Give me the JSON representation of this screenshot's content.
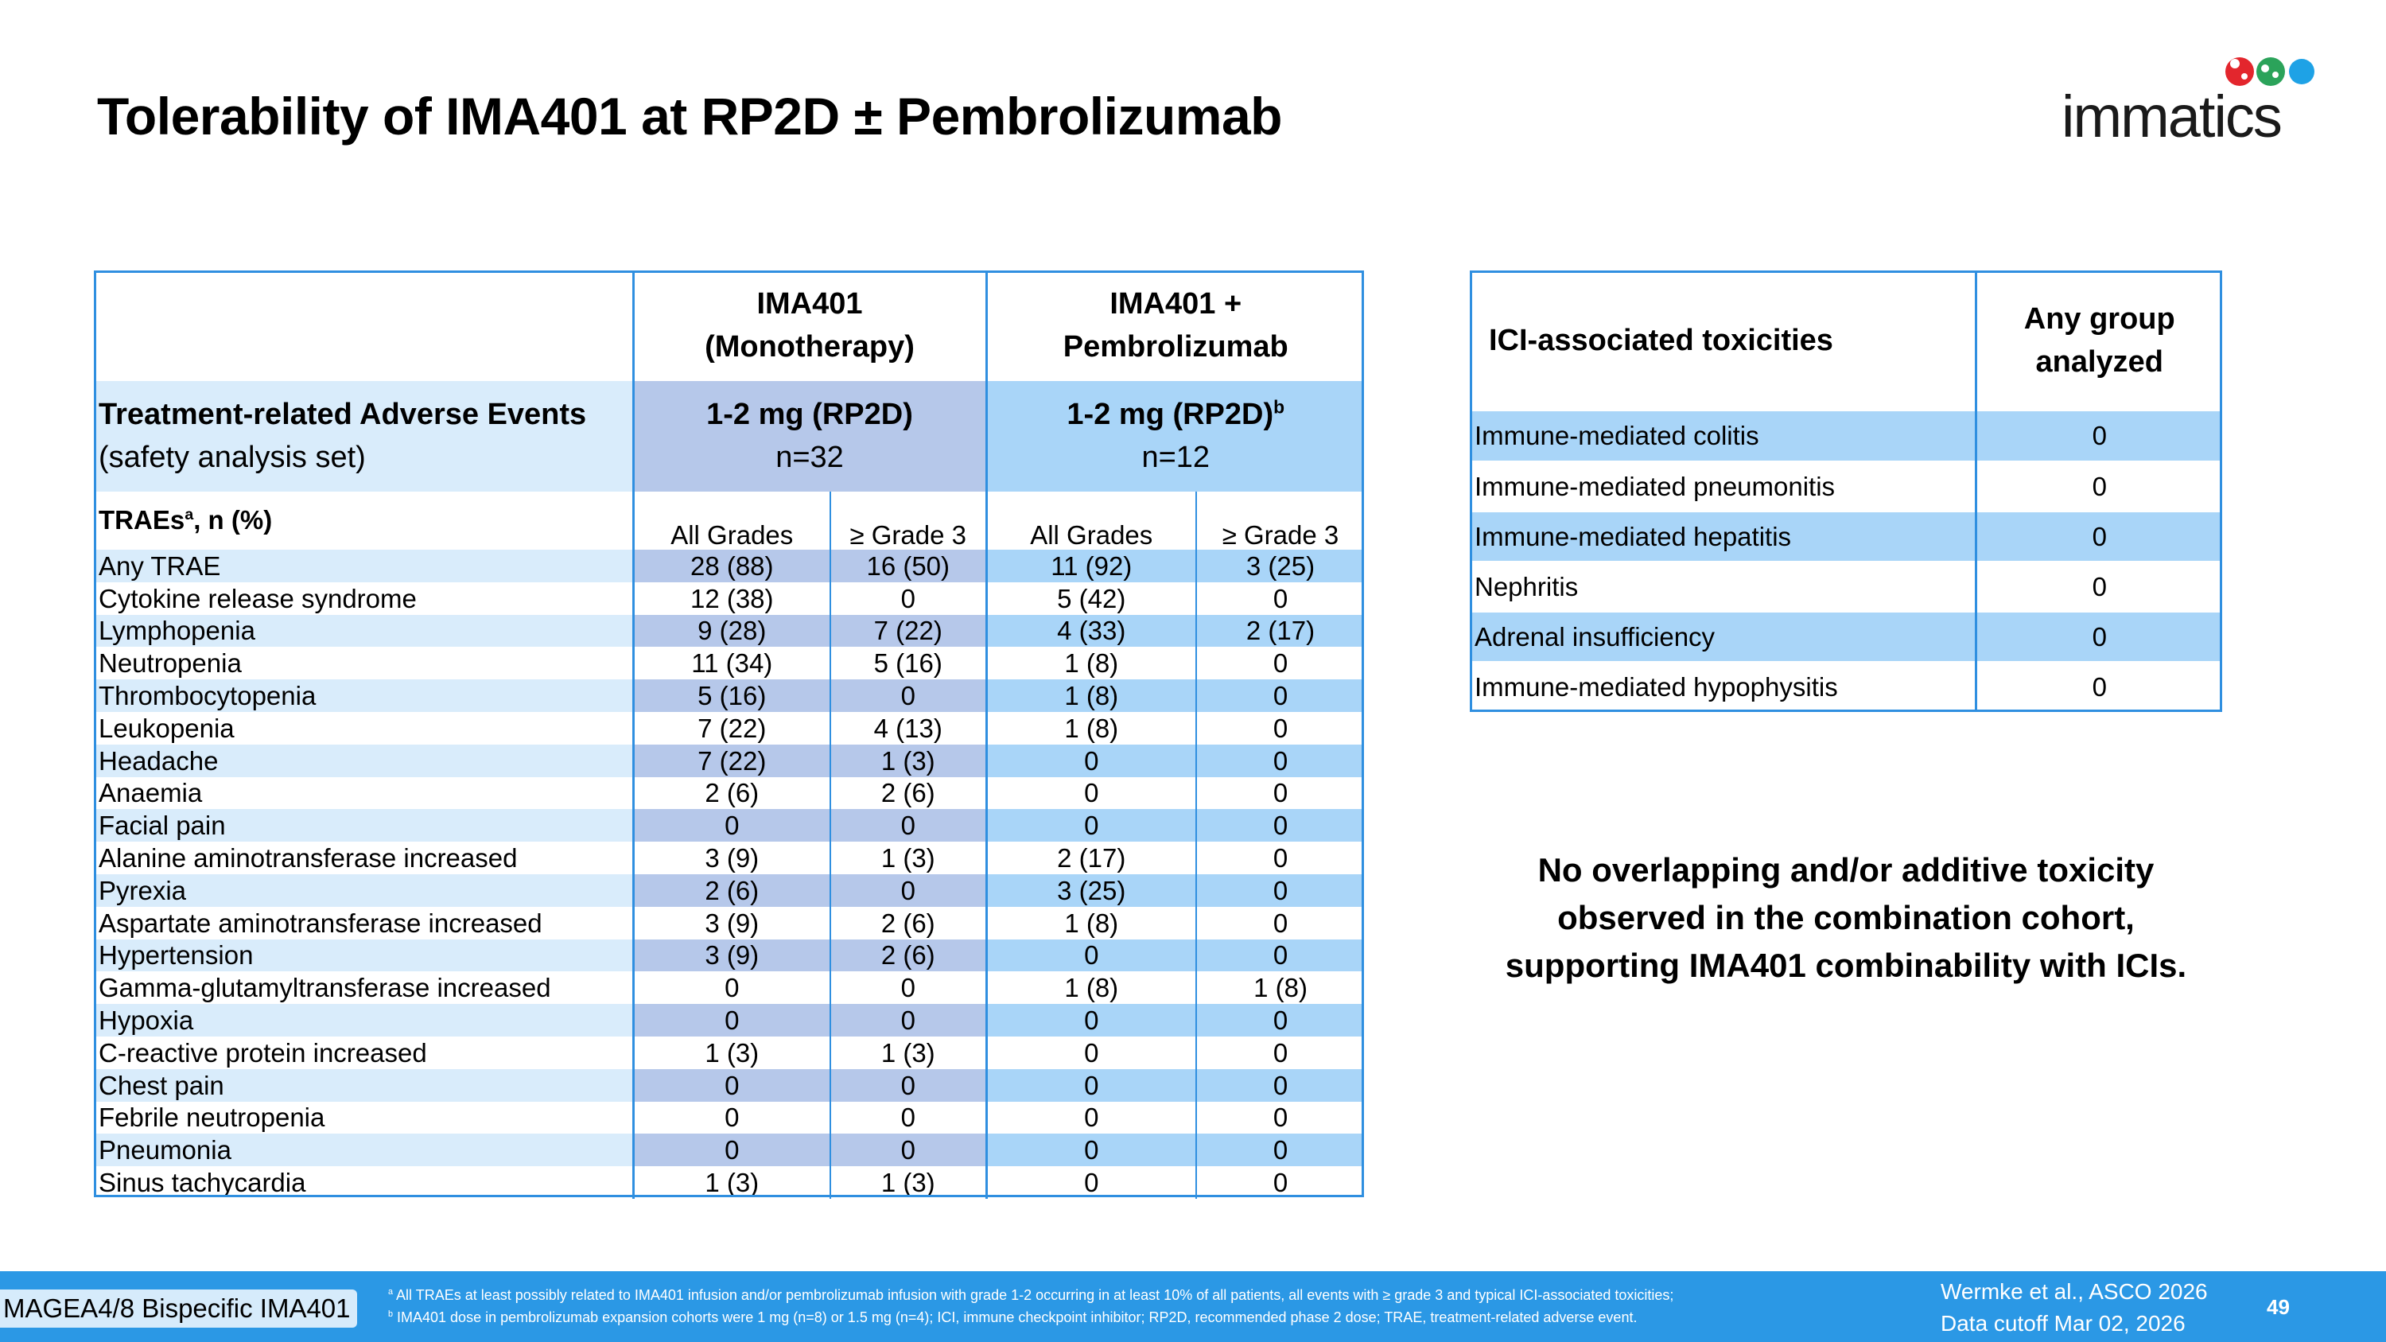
{
  "title": "Tolerability of IMA401 at RP2D ± Pembrolizumab",
  "logo": {
    "text": "immatics",
    "dot_colors": [
      "#e3262d",
      "#2ba35a",
      "#1ea2e6"
    ]
  },
  "trae_table": {
    "header": {
      "mono": "IMA401",
      "mono_sub": "(Monotherapy)",
      "combo": "IMA401 +",
      "combo_sub": "Pembrolizumab"
    },
    "subheader": {
      "label": "Treatment-related Adverse Events",
      "label_sub": "(safety analysis set)",
      "mono_dose": "1-2 mg (RP2D)",
      "mono_n": "n=32",
      "combo_dose": "1-2 mg (RP2D)",
      "combo_dose_sup": "b",
      "combo_n": "n=12"
    },
    "colheader": {
      "label": "TRAEs",
      "label_sup": "a",
      "label_rest": ", n (%)",
      "all_grades": "All Grades",
      "grade3": "≥ Grade 3"
    },
    "rows": [
      [
        "Any TRAE",
        "28 (88)",
        "16 (50)",
        "11 (92)",
        "3 (25)"
      ],
      [
        "Cytokine release syndrome",
        "12 (38)",
        "0",
        "5 (42)",
        "0"
      ],
      [
        "Lymphopenia",
        "9 (28)",
        "7 (22)",
        "4 (33)",
        "2 (17)"
      ],
      [
        "Neutropenia",
        "11 (34)",
        "5 (16)",
        "1 (8)",
        "0"
      ],
      [
        "Thrombocytopenia",
        "5 (16)",
        "0",
        "1 (8)",
        "0"
      ],
      [
        "Leukopenia",
        "7 (22)",
        "4 (13)",
        "1 (8)",
        "0"
      ],
      [
        "Headache",
        "7 (22)",
        "1 (3)",
        "0",
        "0"
      ],
      [
        "Anaemia",
        "2 (6)",
        "2 (6)",
        "0",
        "0"
      ],
      [
        "Facial pain",
        "0",
        "0",
        "0",
        "0"
      ],
      [
        "Alanine aminotransferase increased",
        "3 (9)",
        "1 (3)",
        "2 (17)",
        "0"
      ],
      [
        "Pyrexia",
        "2 (6)",
        "0",
        "3 (25)",
        "0"
      ],
      [
        "Aspartate aminotransferase increased",
        "3 (9)",
        "2 (6)",
        "1 (8)",
        "0"
      ],
      [
        "Hypertension",
        "3 (9)",
        "2 (6)",
        "0",
        "0"
      ],
      [
        "Gamma-glutamyltransferase increased",
        "0",
        "0",
        "1 (8)",
        "1 (8)"
      ],
      [
        "Hypoxia",
        "0",
        "0",
        "0",
        "0"
      ],
      [
        "C-reactive protein increased",
        "1 (3)",
        "1 (3)",
        "0",
        "0"
      ],
      [
        "Chest pain",
        "0",
        "0",
        "0",
        "0"
      ],
      [
        "Febrile neutropenia",
        "0",
        "0",
        "0",
        "0"
      ],
      [
        "Pneumonia",
        "0",
        "0",
        "0",
        "0"
      ],
      [
        "Sinus tachycardia",
        "1 (3)",
        "1 (3)",
        "0",
        "0"
      ]
    ]
  },
  "ici_table": {
    "header_label": "ICI-associated toxicities",
    "header_value_1": "Any group",
    "header_value_2": "analyzed",
    "rows": [
      [
        "Immune-mediated colitis",
        "0"
      ],
      [
        "Immune-mediated pneumonitis",
        "0"
      ],
      [
        "Immune-mediated hepatitis",
        "0"
      ],
      [
        "Nephritis",
        "0"
      ],
      [
        "Adrenal insufficiency",
        "0"
      ],
      [
        "Immune-mediated hypophysitis",
        "0"
      ]
    ]
  },
  "conclusion": {
    "line1": "No overlapping and/or additive toxicity",
    "line2": "observed in the combination cohort,",
    "line3": "supporting IMA401 combinability with ICIs."
  },
  "footer": {
    "tag": "MAGEA4/8 Bispecific IMA401",
    "footnote_a_sup": "a",
    "footnote_a": " All TRAEs at least possibly related to IMA401 infusion and/or pembrolizumab infusion with grade 1-2 occurring in at least 10% of all patients, all events with ≥ grade 3 and typical ICI-associated toxicities;",
    "footnote_b_sup": "b",
    "footnote_b": " IMA401 dose in pembrolizumab expansion cohorts were 1 mg (n=8) or 1.5 mg (n=4); ICI, immune checkpoint inhibitor; RP2D, recommended phase 2 dose; TRAE, treatment-related adverse event.",
    "citation": "Wermke et al., ASCO 2026",
    "cutoff": "Data cutoff Mar 02, 2026",
    "page": "49"
  }
}
